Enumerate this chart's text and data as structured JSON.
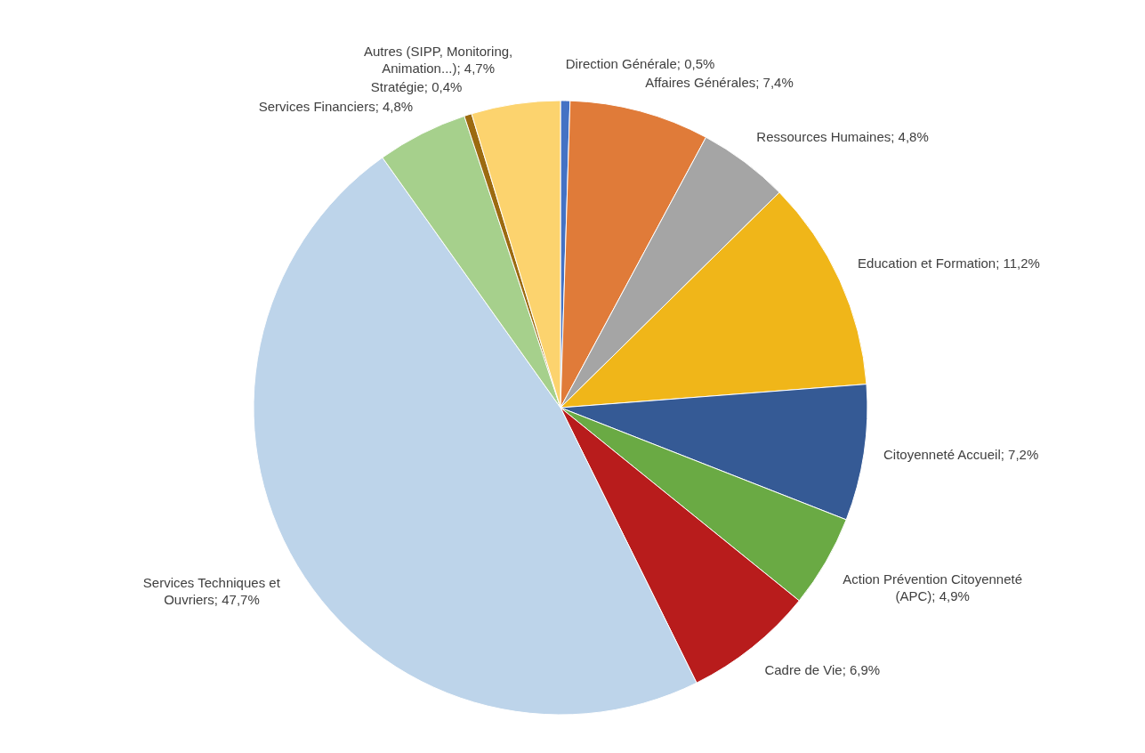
{
  "chart_data": {
    "type": "pie",
    "categories": [
      "Direction Générale",
      "Affaires Générales",
      "Ressources Humaines",
      "Education et Formation",
      "Citoyenneté Accueil",
      "Action Prévention Citoyenneté (APC)",
      "Cadre de Vie",
      "Services Techniques et Ouvriers",
      "Services Financiers",
      "Stratégie",
      "Autres (SIPP, Monitoring, Animation...)"
    ],
    "values": [
      0.5,
      7.4,
      4.8,
      11.2,
      7.2,
      4.9,
      6.9,
      47.7,
      4.8,
      0.4,
      4.7
    ],
    "colors": [
      "#4472c4",
      "#e07b39",
      "#a5a5a5",
      "#f0b619",
      "#355a95",
      "#6aaa44",
      "#b81c1c",
      "#bdd4ea",
      "#a6d08c",
      "#9c6a10",
      "#fcd36e"
    ],
    "value_labels": [
      "0,5%",
      "7,4%",
      "4,8%",
      "11,2%",
      "7,2%",
      "4,9%",
      "6,9%",
      "47,7%",
      "4,8%",
      "0,4%",
      "4,7%"
    ],
    "legend": false
  }
}
